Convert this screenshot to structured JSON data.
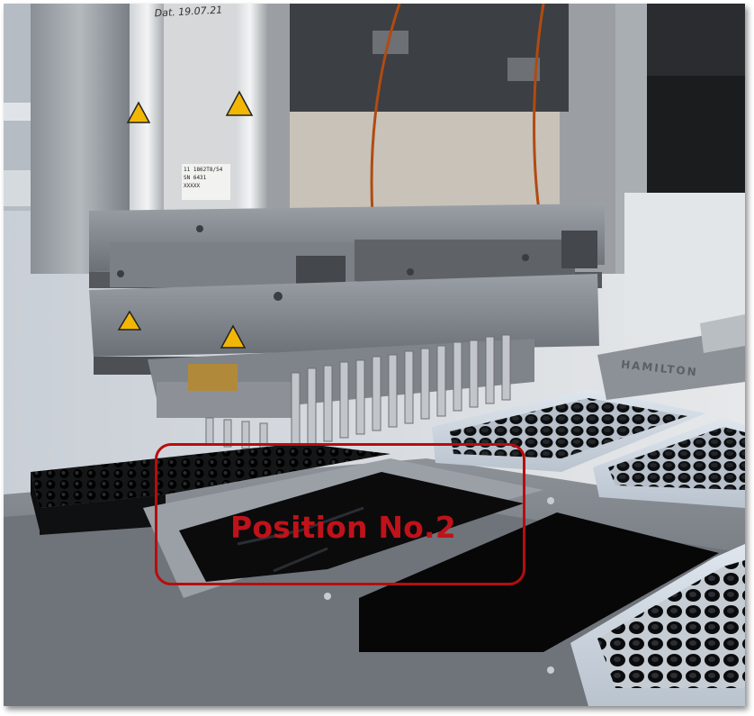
{
  "image": {
    "subject": "pipetting-robot-head-over-labware-deck",
    "annotation": {
      "label": "Position No.2",
      "color": "#c0121a"
    },
    "visible_markings": {
      "head_date_stamp": "Dat. 19.07.21",
      "head_label_lines": [
        "11 1862T8/54",
        "SN 6431",
        "XXXXX"
      ],
      "carrier_brand": "HAMILTON"
    }
  }
}
